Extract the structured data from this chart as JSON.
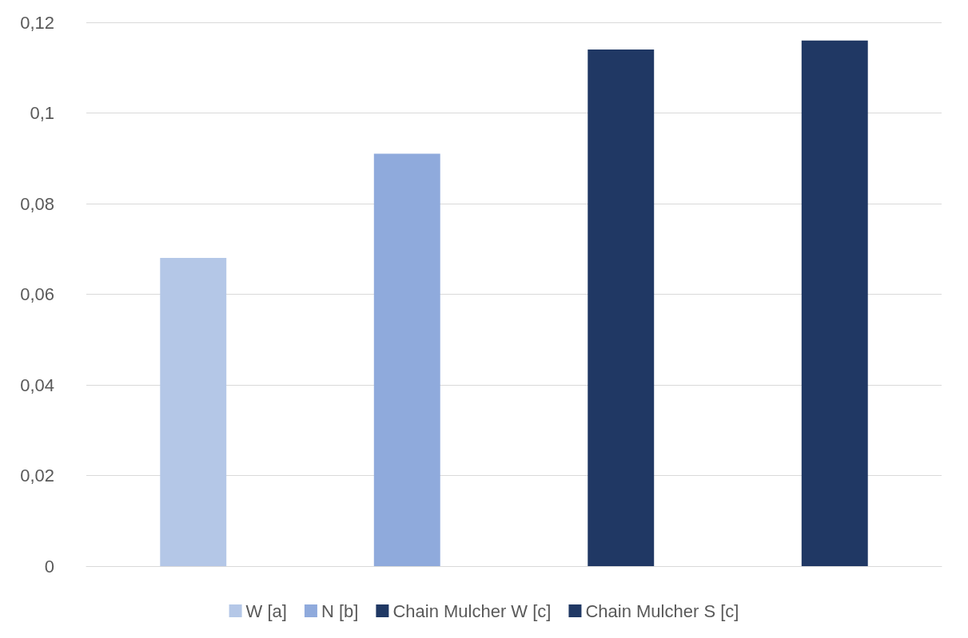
{
  "chart_data": {
    "type": "bar",
    "categories": [
      null,
      null,
      null,
      null
    ],
    "series": [
      {
        "name": "W [a]",
        "color": "#b4c7e7",
        "values": [
          0.068,
          null,
          null,
          null
        ]
      },
      {
        "name": "N [b]",
        "color": "#8faadc",
        "values": [
          null,
          0.091,
          null,
          null
        ]
      },
      {
        "name": "Chain Mulcher W [c]",
        "color": "#203864",
        "values": [
          null,
          null,
          0.114,
          null
        ]
      },
      {
        "name": "Chain Mulcher S [c]",
        "color": "#203864",
        "values": [
          null,
          null,
          null,
          0.116
        ]
      }
    ],
    "ylim": [
      0,
      0.12
    ],
    "yticks": [
      0,
      {
        "value": 0.02,
        "label": "0,02"
      },
      {
        "value": 0.04,
        "label": "0,04"
      },
      {
        "value": 0.06,
        "label": "0,06"
      },
      {
        "value": 0.08,
        "label": "0,08"
      },
      {
        "value": 0.1,
        "label": "0,1"
      },
      {
        "value": 0.12,
        "label": "0,12"
      }
    ],
    "grid": "y",
    "legend": "bottom"
  }
}
